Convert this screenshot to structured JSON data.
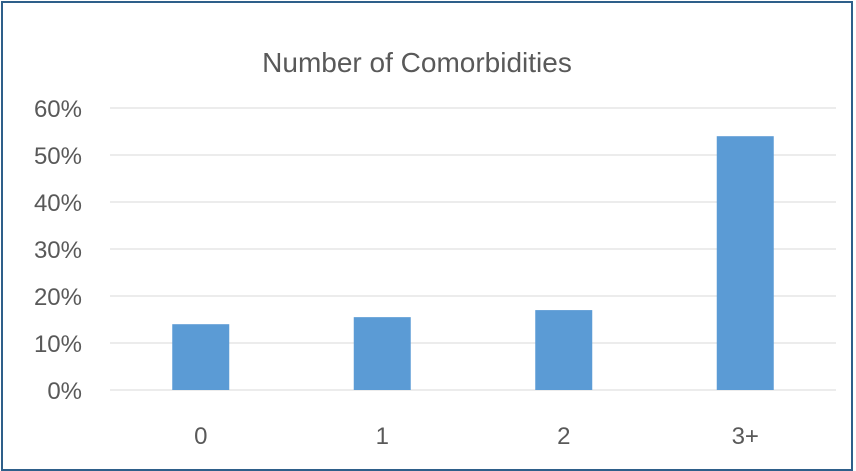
{
  "chart_data": {
    "type": "bar",
    "title": "Number of Comorbidities",
    "xlabel": "",
    "ylabel": "",
    "categories": [
      "0",
      "1",
      "2",
      "3+"
    ],
    "values": [
      0.14,
      0.155,
      0.17,
      0.54
    ],
    "ylim": [
      0,
      0.6
    ],
    "yticks": [
      0,
      0.1,
      0.2,
      0.3,
      0.4,
      0.5,
      0.6
    ],
    "ytick_labels": [
      "0%",
      "10%",
      "20%",
      "30%",
      "40%",
      "50%",
      "60%"
    ],
    "bar_color": "#5b9bd5",
    "grid": true,
    "legend": "none"
  }
}
